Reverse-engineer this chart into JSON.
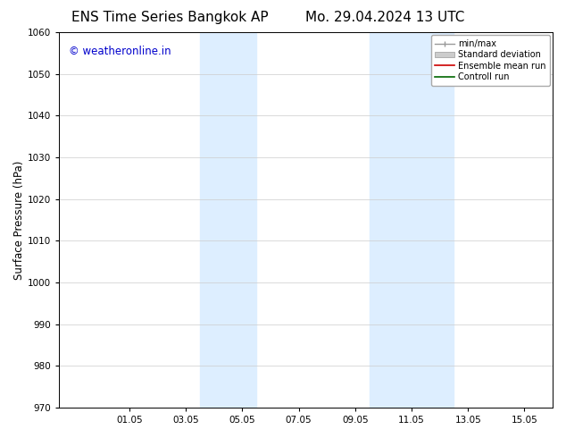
{
  "title_left": "ENS Time Series Bangkok AP",
  "title_right": "Mo. 29.04.2024 13 UTC",
  "ylabel": "Surface Pressure (hPa)",
  "ylim": [
    970,
    1060
  ],
  "yticks": [
    970,
    980,
    990,
    1000,
    1010,
    1020,
    1030,
    1040,
    1050,
    1060
  ],
  "xtick_labels": [
    "01.05",
    "03.05",
    "05.05",
    "07.05",
    "09.05",
    "11.05",
    "13.05",
    "15.05"
  ],
  "xtick_positions": [
    2,
    4,
    6,
    8,
    10,
    12,
    14,
    16
  ],
  "xlim": [
    -0.5,
    17.0
  ],
  "shaded_bands": [
    {
      "x_start": 4.5,
      "x_end": 6.5,
      "color": "#ddeeff"
    },
    {
      "x_start": 10.5,
      "x_end": 13.5,
      "color": "#ddeeff"
    }
  ],
  "watermark_text": "© weatheronline.in",
  "watermark_color": "#0000cc",
  "watermark_fontsize": 8.5,
  "bg_color": "#ffffff",
  "grid_color": "#cccccc",
  "title_fontsize": 11,
  "axis_fontsize": 8.5,
  "tick_fontsize": 7.5
}
